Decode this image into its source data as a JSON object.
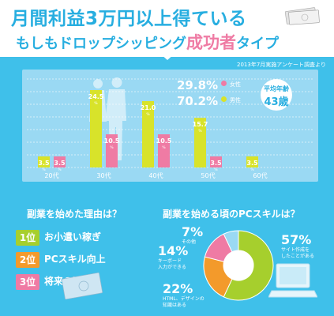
{
  "header": {
    "title_line1": "月間利益3万円以上得ている",
    "title_line2_prefix": "もしもドロップシッピング",
    "title_line2_highlight": "成功者",
    "title_line2_suffix": "タイプ"
  },
  "survey_note": "2013年7月実施アンケート調査より",
  "gender": {
    "female_pct": "29.8%",
    "female_label": "女性",
    "male_pct": "70.2%",
    "male_label": "男性",
    "avg_age_label": "平均年齢",
    "avg_age_value": "43歳"
  },
  "colors": {
    "male": "#d8e32a",
    "female": "#ef7ba4",
    "panel": "#3fc0ea",
    "accent": "#27aee0"
  },
  "chart_data": {
    "type": "bar",
    "categories": [
      "20代",
      "30代",
      "40代",
      "50代",
      "60代"
    ],
    "series": [
      {
        "name": "男性",
        "values": [
          3.5,
          24.5,
          21.0,
          15.7,
          3.5
        ]
      },
      {
        "name": "女性",
        "values": [
          3.5,
          10.5,
          10.5,
          3.5,
          null
        ]
      }
    ],
    "value_labels": {
      "男性": [
        "3.5",
        "24.5",
        "21.0",
        "15.7",
        "3.5"
      ],
      "女性": [
        "3.5",
        "10.5",
        "10.5",
        "3.5",
        ""
      ]
    },
    "unit": "%",
    "ylim": [
      0,
      28
    ],
    "legend": "top-right",
    "grid": true
  },
  "reasons": {
    "title": "副業を始めた理由は？",
    "items": [
      {
        "rank": "1位",
        "text": "お小遣い稼ぎ",
        "color": "#a6cf2d"
      },
      {
        "rank": "2位",
        "text": "PCスキル向上",
        "color": "#f39a2b"
      },
      {
        "rank": "3位",
        "text": "将来の貯金",
        "color": "#ef7ba4"
      }
    ]
  },
  "skills": {
    "title": "副業を始める頃のPCスキルは？",
    "chart_data": {
      "type": "pie",
      "slices": [
        {
          "label": "サイト作成をしたことがある",
          "value": 57,
          "display": "57%",
          "color": "#a6cf2d"
        },
        {
          "label": "HTML、デザインの知識はある",
          "value": 22,
          "display": "22%",
          "color": "#f39a2b"
        },
        {
          "label": "キーボード入力ができる",
          "value": 14,
          "display": "14%",
          "color": "#ef7ba4"
        },
        {
          "label": "その他",
          "value": 7,
          "display": "7%",
          "color": "#9ad9f3"
        }
      ]
    },
    "labels": {
      "s57_a": "サイト作成を",
      "s57_b": "したことがある",
      "s22_a": "HTML、デザインの",
      "s22_b": "知識はある",
      "s14_a": "キーボード",
      "s14_b": "入力ができる",
      "s7_a": "その他"
    }
  }
}
